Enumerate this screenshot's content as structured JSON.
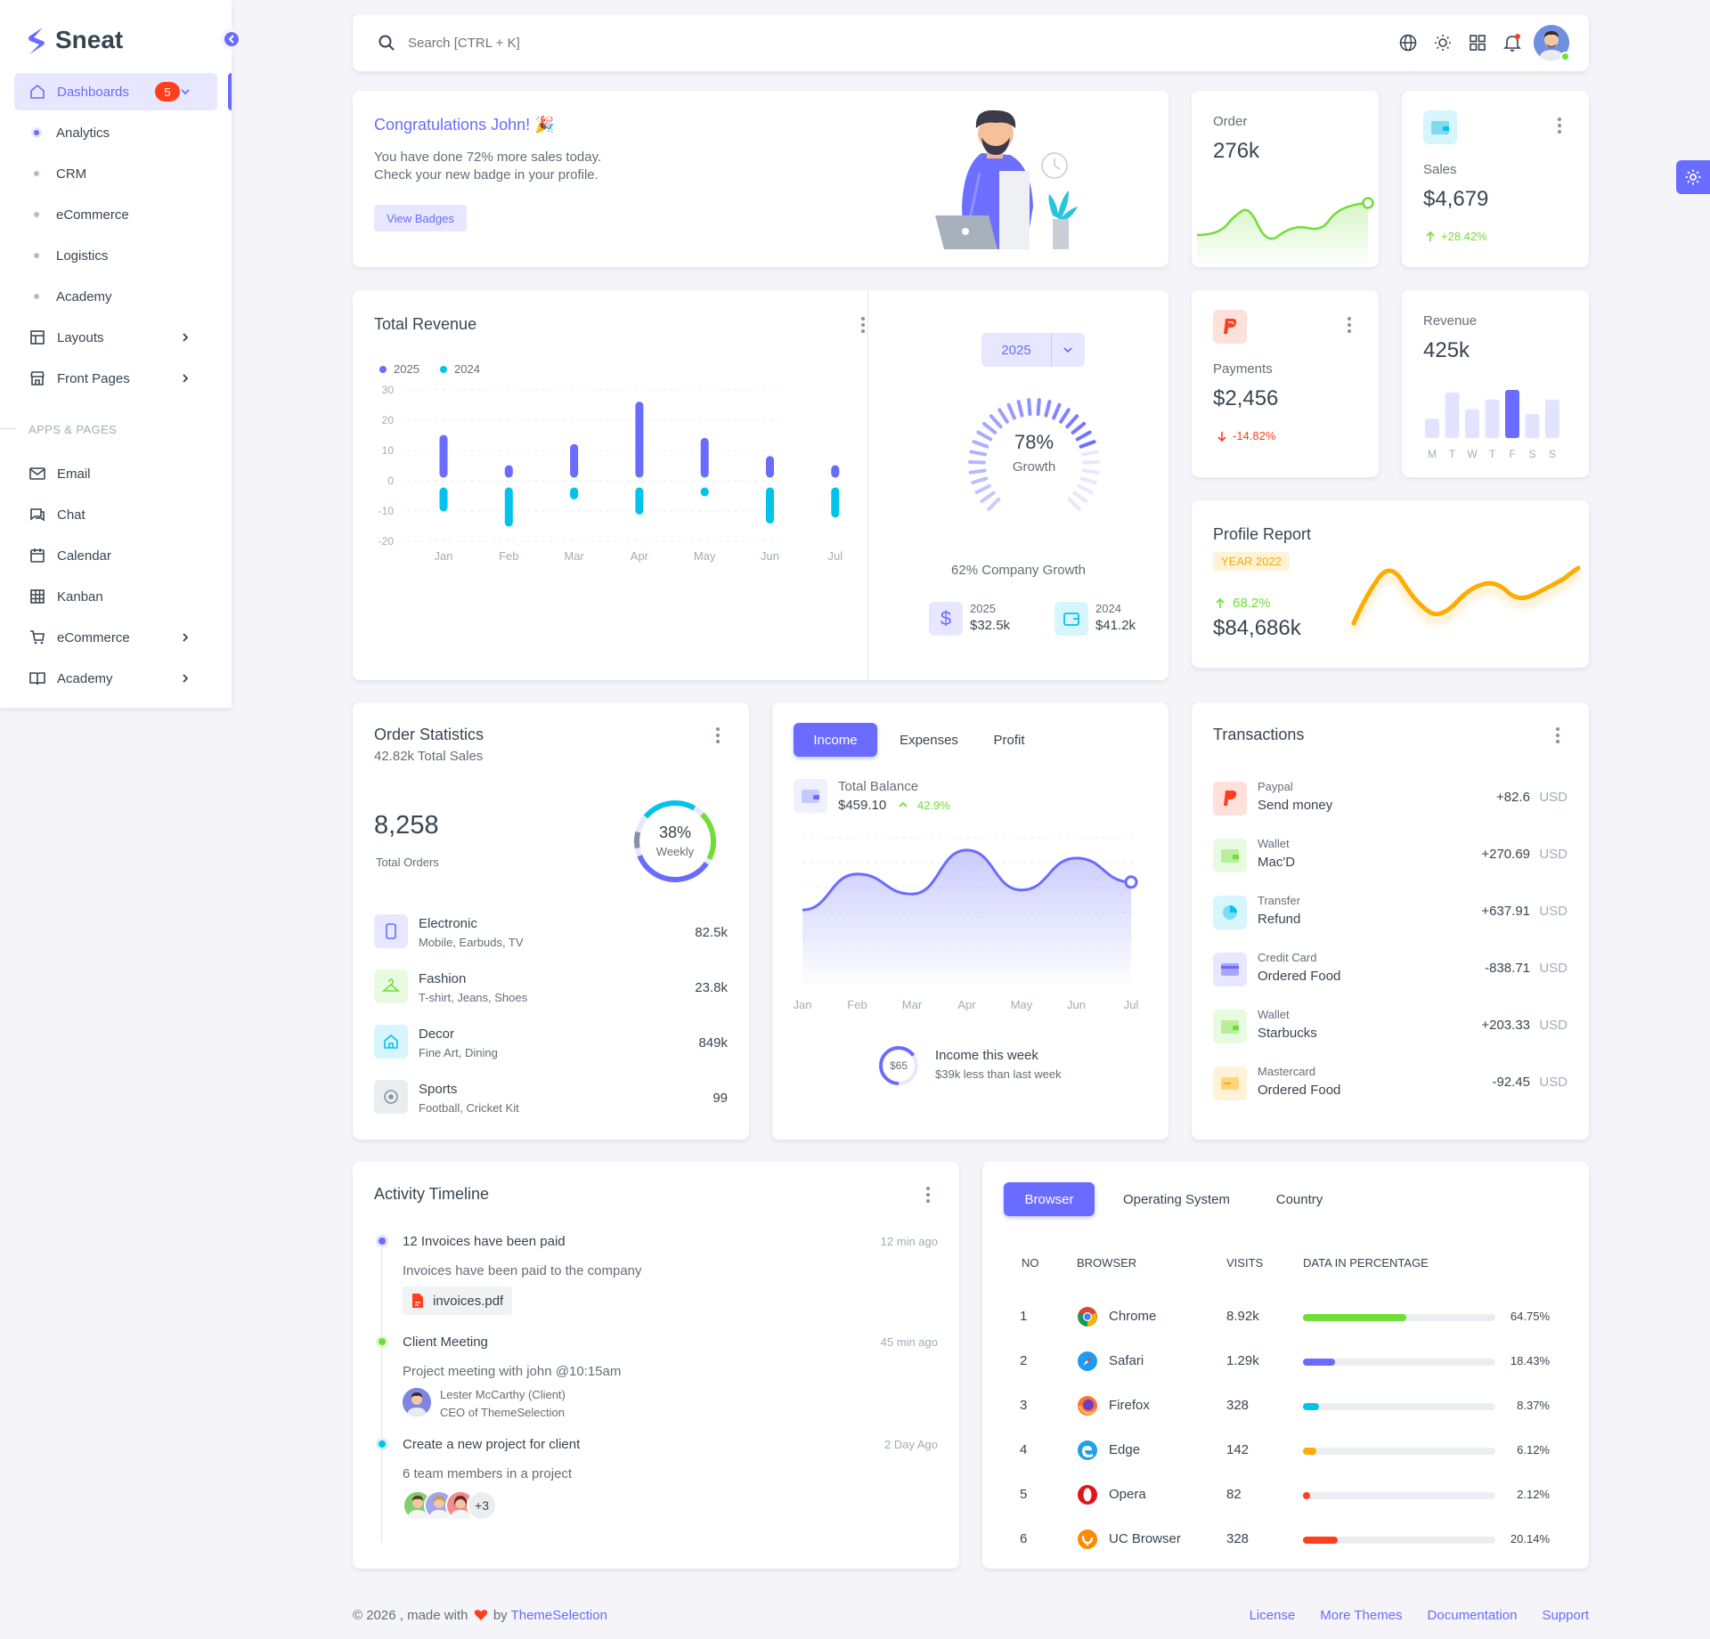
{
  "brand": {
    "name": "Sneat"
  },
  "sidebar": {
    "dashboards": {
      "label": "Dashboards",
      "badge": "5"
    },
    "dash_items": [
      "Analytics",
      "CRM",
      "eCommerce",
      "Logistics",
      "Academy"
    ],
    "layouts": "Layouts",
    "front_pages": "Front Pages",
    "section_header": "APPS & PAGES",
    "apps": [
      "Email",
      "Chat",
      "Calendar",
      "Kanban",
      "eCommerce",
      "Academy"
    ]
  },
  "topbar": {
    "search_placeholder": "Search [CTRL + K]"
  },
  "congrats": {
    "title": "Congratulations John! 🎉",
    "line1": "You have done 72% more sales today.",
    "line2": "Check your new badge in your profile.",
    "button": "View Badges"
  },
  "order": {
    "label": "Order",
    "value": "276k"
  },
  "sales": {
    "label": "Sales",
    "value": "$4,679",
    "change": "+28.42%"
  },
  "payments": {
    "label": "Payments",
    "value": "$2,456",
    "change": "-14.82%"
  },
  "revenue_card": {
    "label": "Revenue",
    "value": "425k",
    "days": [
      "M",
      "T",
      "W",
      "T",
      "F",
      "S",
      "S"
    ]
  },
  "profile": {
    "title": "Profile Report",
    "badge": "YEAR 2022",
    "change": "68.2%",
    "value": "$84,686k"
  },
  "total_revenue": {
    "title": "Total Revenue"
  },
  "growth": {
    "year_button": "2025",
    "percent": "78%",
    "label": "Growth",
    "company": "62% Company Growth",
    "y1": {
      "year": "2025",
      "value": "$32.5k"
    },
    "y2": {
      "year": "2024",
      "value": "$41.2k"
    }
  },
  "order_stats": {
    "title": "Order Statistics",
    "subtitle": "42.82k Total Sales",
    "total": "8,258",
    "total_label": "Total Orders",
    "donut_percent": "38%",
    "donut_label": "Weekly",
    "items": [
      {
        "name": "Electronic",
        "desc": "Mobile, Earbuds, TV",
        "value": "82.5k"
      },
      {
        "name": "Fashion",
        "desc": "T-shirt, Jeans, Shoes",
        "value": "23.8k"
      },
      {
        "name": "Decor",
        "desc": "Fine Art, Dining",
        "value": "849k"
      },
      {
        "name": "Sports",
        "desc": "Football, Cricket Kit",
        "value": "99"
      }
    ]
  },
  "income": {
    "tabs": [
      "Income",
      "Expenses",
      "Profit"
    ],
    "balance_label": "Total Balance",
    "balance": "$459.10",
    "change": "42.9%",
    "week_amount": "$65",
    "week_title": "Income this week",
    "week_desc": "$39k less than last week"
  },
  "transactions": {
    "title": "Transactions",
    "currency": "USD",
    "items": [
      {
        "type": "Paypal",
        "desc": "Send money",
        "amount": "+82.6"
      },
      {
        "type": "Wallet",
        "desc": "Mac'D",
        "amount": "+270.69"
      },
      {
        "type": "Transfer",
        "desc": "Refund",
        "amount": "+637.91"
      },
      {
        "type": "Credit Card",
        "desc": "Ordered Food",
        "amount": "-838.71"
      },
      {
        "type": "Wallet",
        "desc": "Starbucks",
        "amount": "+203.33"
      },
      {
        "type": "Mastercard",
        "desc": "Ordered Food",
        "amount": "-92.45"
      }
    ]
  },
  "timeline": {
    "title": "Activity Timeline",
    "items": [
      {
        "title": "12 Invoices have been paid",
        "time": "12 min ago",
        "desc": "Invoices have been paid to the company",
        "file": "invoices.pdf"
      },
      {
        "title": "Client Meeting",
        "time": "45 min ago",
        "desc": "Project meeting with john @10:15am",
        "person": "Lester McCarthy (Client)",
        "person_role": "CEO of ThemeSelection"
      },
      {
        "title": "Create a new project for client",
        "time": "2 Day Ago",
        "desc": "6 team members in a project",
        "more": "+3"
      }
    ]
  },
  "browser": {
    "tabs": [
      "Browser",
      "Operating System",
      "Country"
    ],
    "headers": [
      "NO",
      "BROWSER",
      "VISITS",
      "DATA IN PERCENTAGE"
    ],
    "rows": [
      {
        "no": "1",
        "name": "Chrome",
        "visits": "8.92k",
        "percent": "64.75%",
        "value": 64.75,
        "color": "#71dd37"
      },
      {
        "no": "2",
        "name": "Safari",
        "visits": "1.29k",
        "percent": "18.43%",
        "value": 18.43,
        "color": "#696cff"
      },
      {
        "no": "3",
        "name": "Firefox",
        "visits": "328",
        "percent": "8.37%",
        "value": 8.37,
        "color": "#03c3ec"
      },
      {
        "no": "4",
        "name": "Edge",
        "visits": "142",
        "percent": "6.12%",
        "value": 6.12,
        "color": "#ffab00"
      },
      {
        "no": "5",
        "name": "Opera",
        "visits": "82",
        "percent": "2.12%",
        "value": 2.12,
        "color": "#ff3e1d"
      },
      {
        "no": "6",
        "name": "UC Browser",
        "visits": "328",
        "percent": "20.14%",
        "value": 20.14,
        "color": "#ff3e1d"
      }
    ]
  },
  "footer": {
    "copy": "© 2026 , made with",
    "by": "by",
    "brand": "ThemeSelection",
    "links": [
      "License",
      "More Themes",
      "Documentation",
      "Support"
    ]
  },
  "chart_data": [
    {
      "type": "bar",
      "categories": [
        "Jan",
        "Feb",
        "Mar",
        "Apr",
        "May",
        "Jun",
        "Jul"
      ],
      "series": [
        {
          "name": "2025",
          "values": [
            15,
            5,
            12,
            26,
            14,
            8,
            5
          ],
          "color": "#696cff"
        },
        {
          "name": "2024",
          "values": [
            -10,
            -15,
            -6,
            -11,
            -5,
            -14,
            -12
          ],
          "color": "#03c3ec"
        }
      ],
      "yticks": [
        30,
        20,
        10,
        0,
        -10,
        -20
      ],
      "ylim": [
        -20,
        30
      ]
    },
    {
      "type": "line",
      "categories": [
        "Jan",
        "Feb",
        "Mar",
        "Apr",
        "May",
        "Jun",
        "Jul"
      ],
      "values": [
        21,
        30,
        25,
        36,
        26,
        34,
        28
      ],
      "color": "#696cff"
    },
    {
      "type": "bar",
      "categories": [
        "M",
        "T",
        "W",
        "T",
        "F",
        "S",
        "S"
      ],
      "values": [
        40,
        95,
        60,
        80,
        100,
        50,
        80
      ],
      "highlight": 4
    }
  ]
}
